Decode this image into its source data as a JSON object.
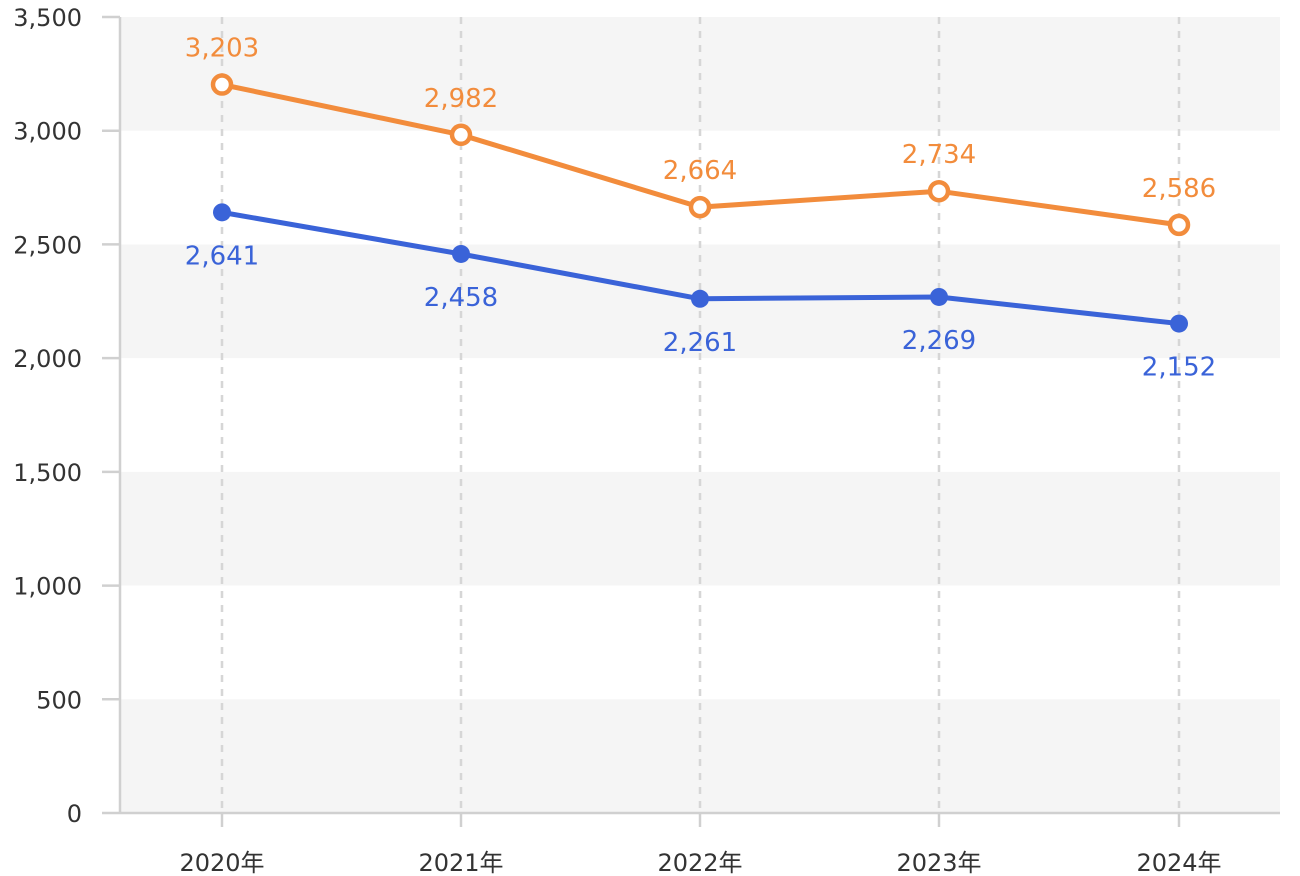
{
  "chart_data": {
    "type": "line",
    "categories": [
      "2020年",
      "2021年",
      "2022年",
      "2023年",
      "2024年"
    ],
    "series": [
      {
        "values": [
          3203,
          2982,
          2664,
          2734,
          2586
        ],
        "labels": [
          "3,203",
          "2,982",
          "2,664",
          "2,734",
          "2,586"
        ],
        "color": "#F28C3C",
        "marker": "hollow-circle",
        "label_position": "above"
      },
      {
        "values": [
          2641,
          2458,
          2261,
          2269,
          2152
        ],
        "labels": [
          "2,641",
          "2,458",
          "2,261",
          "2,269",
          "2,152"
        ],
        "color": "#3A63D8",
        "marker": "filled-circle",
        "label_position": "below"
      }
    ],
    "yticks": [
      0,
      500,
      1000,
      1500,
      2000,
      2500,
      3000,
      3500
    ],
    "ytick_labels": [
      "0",
      "500",
      "1,000",
      "1,500",
      "2,000",
      "2,500",
      "3,000",
      "3,500"
    ],
    "ylim": [
      0,
      3500
    ],
    "title": "",
    "xlabel": "",
    "ylabel": "",
    "grid": "alternating horizontal bands and dashed vertical lines",
    "legend": "none"
  }
}
